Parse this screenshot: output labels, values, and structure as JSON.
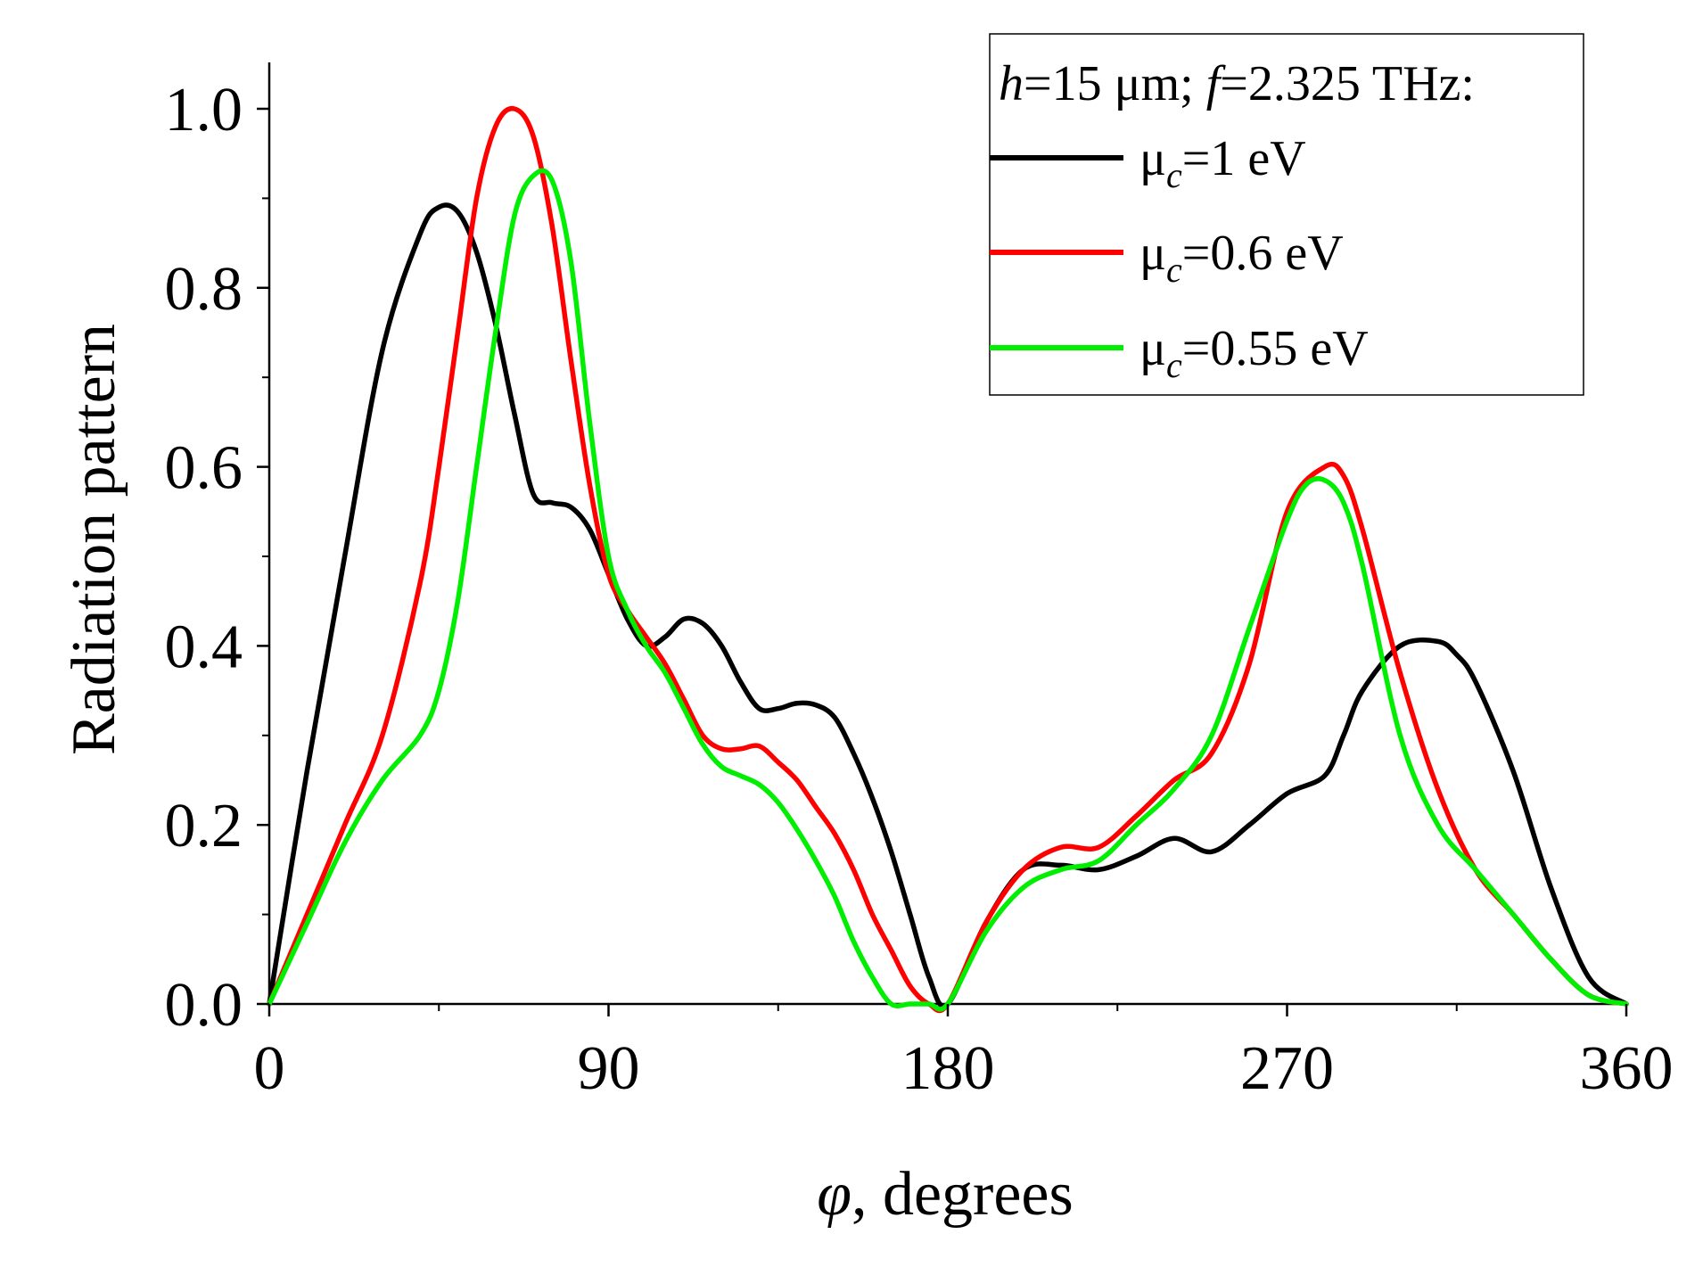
{
  "chart_data": {
    "type": "line",
    "xlabel_symbol": "φ",
    "xlabel_rest": ", degrees",
    "ylabel": "Radiation pattern",
    "xlim": [
      0,
      360
    ],
    "ylim": [
      0,
      1.05
    ],
    "x_ticks": [
      0,
      90,
      180,
      270,
      360
    ],
    "x_tick_labels": [
      "0",
      "90",
      "180",
      "270",
      "360"
    ],
    "x_minor_ticks": [
      45,
      135,
      225,
      315
    ],
    "y_ticks": [
      0,
      0.2,
      0.4,
      0.6,
      0.8,
      1.0
    ],
    "y_tick_labels": [
      "0.0",
      "0.2",
      "0.4",
      "0.6",
      "0.8",
      "1.0"
    ],
    "y_minor_ticks": [
      0.1,
      0.3,
      0.5,
      0.7,
      0.9
    ],
    "legend": {
      "position": "top-right",
      "title": {
        "h": "h",
        "h_val": "=15 μm; ",
        "f": "f",
        "f_val": "=2.325 THz:"
      },
      "entries": [
        {
          "mu": "μ",
          "sub": "c",
          "rest": "=1 eV"
        },
        {
          "mu": "μ",
          "sub": "c",
          "rest": "=0.6 eV"
        },
        {
          "mu": "μ",
          "sub": "c",
          "rest": "=0.55 eV"
        }
      ]
    },
    "series": [
      {
        "name": "μc=1 eV",
        "color": "#000000",
        "x": [
          0,
          10,
          20,
          30,
          40,
          45,
          50,
          55,
          60,
          65,
          70,
          75,
          80,
          85,
          90,
          95,
          100,
          105,
          110,
          115,
          120,
          125,
          130,
          135,
          140,
          145,
          150,
          155,
          160,
          165,
          170,
          175,
          180,
          190,
          200,
          210,
          220,
          230,
          240,
          250,
          260,
          270,
          280,
          285,
          290,
          300,
          310,
          315,
          320,
          330,
          340,
          350,
          360
        ],
        "y": [
          0.0,
          0.26,
          0.5,
          0.73,
          0.86,
          0.89,
          0.885,
          0.84,
          0.76,
          0.66,
          0.57,
          0.56,
          0.555,
          0.53,
          0.48,
          0.43,
          0.4,
          0.41,
          0.43,
          0.425,
          0.4,
          0.36,
          0.33,
          0.33,
          0.336,
          0.334,
          0.32,
          0.28,
          0.23,
          0.17,
          0.1,
          0.03,
          0.0,
          0.09,
          0.15,
          0.155,
          0.15,
          0.165,
          0.185,
          0.17,
          0.2,
          0.235,
          0.255,
          0.3,
          0.35,
          0.4,
          0.405,
          0.39,
          0.36,
          0.26,
          0.13,
          0.03,
          0.0
        ]
      },
      {
        "name": "μc=0.6 eV",
        "color": "#ff0000",
        "x": [
          0,
          10,
          20,
          30,
          40,
          45,
          50,
          55,
          60,
          65,
          70,
          75,
          80,
          85,
          90,
          95,
          100,
          105,
          110,
          115,
          120,
          125,
          130,
          135,
          140,
          145,
          150,
          155,
          160,
          165,
          170,
          175,
          180,
          190,
          200,
          210,
          220,
          230,
          240,
          250,
          260,
          270,
          280,
          285,
          290,
          300,
          310,
          320,
          330,
          340,
          350,
          360
        ],
        "y": [
          0.0,
          0.1,
          0.2,
          0.3,
          0.47,
          0.6,
          0.75,
          0.9,
          0.98,
          1.0,
          0.97,
          0.87,
          0.72,
          0.58,
          0.48,
          0.44,
          0.41,
          0.38,
          0.34,
          0.3,
          0.285,
          0.285,
          0.288,
          0.27,
          0.25,
          0.22,
          0.19,
          0.15,
          0.1,
          0.06,
          0.02,
          0.0,
          0.0,
          0.09,
          0.15,
          0.175,
          0.175,
          0.21,
          0.25,
          0.28,
          0.38,
          0.55,
          0.6,
          0.59,
          0.53,
          0.37,
          0.24,
          0.15,
          0.1,
          0.05,
          0.01,
          0.0
        ]
      },
      {
        "name": "μc=0.55 eV",
        "color": "#00ee00",
        "x": [
          0,
          10,
          20,
          30,
          40,
          45,
          50,
          55,
          60,
          65,
          70,
          75,
          80,
          85,
          90,
          95,
          100,
          105,
          110,
          115,
          120,
          125,
          130,
          135,
          140,
          145,
          150,
          155,
          160,
          165,
          170,
          175,
          180,
          190,
          200,
          210,
          220,
          230,
          240,
          250,
          260,
          270,
          275,
          280,
          285,
          290,
          300,
          310,
          320,
          330,
          340,
          350,
          360
        ],
        "y": [
          0.0,
          0.09,
          0.18,
          0.25,
          0.3,
          0.35,
          0.45,
          0.6,
          0.75,
          0.88,
          0.925,
          0.92,
          0.83,
          0.65,
          0.5,
          0.44,
          0.4,
          0.37,
          0.33,
          0.29,
          0.265,
          0.255,
          0.245,
          0.225,
          0.195,
          0.16,
          0.12,
          0.07,
          0.03,
          0.0,
          0.0,
          0.0,
          0.0,
          0.08,
          0.13,
          0.15,
          0.16,
          0.2,
          0.24,
          0.3,
          0.42,
          0.54,
          0.58,
          0.585,
          0.56,
          0.49,
          0.3,
          0.2,
          0.15,
          0.1,
          0.05,
          0.01,
          0.0
        ]
      }
    ]
  }
}
